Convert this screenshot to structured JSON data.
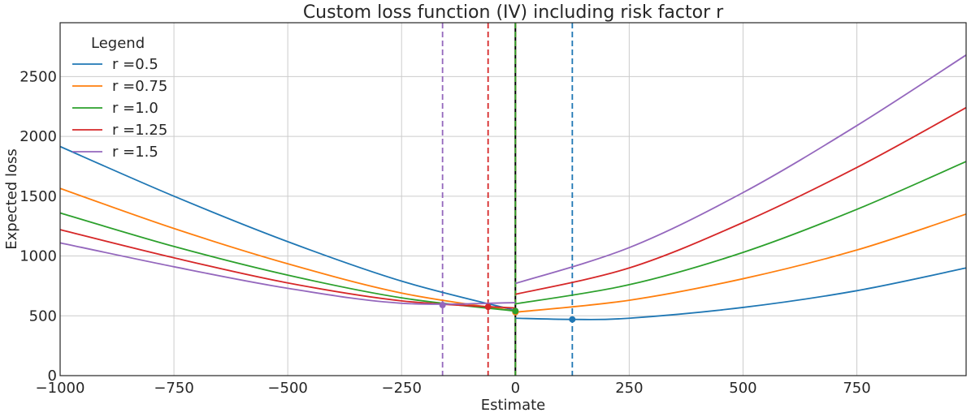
{
  "chart_data": {
    "type": "line",
    "title": "Custom loss function (IV) including risk factor r",
    "xlabel": "Estimate",
    "ylabel": "Expected loss",
    "xlim": [
      -1000,
      990
    ],
    "ylim": [
      0,
      2950
    ],
    "grid": true,
    "legend": {
      "title": "Legend",
      "placement": "top-left"
    },
    "x_ticks": [
      -1000,
      -750,
      -500,
      -250,
      0,
      250,
      500,
      750
    ],
    "x_tick_labels": [
      "−1000",
      "−750",
      "−500",
      "−250",
      "0",
      "250",
      "500",
      "750"
    ],
    "y_ticks": [
      0,
      500,
      1000,
      1500,
      2000,
      2500
    ],
    "y_tick_labels": [
      "0",
      "500",
      "1000",
      "1500",
      "2000",
      "2500"
    ],
    "series": [
      {
        "name": "r =0.5",
        "color": "#1f77b4",
        "left": {
          "x": [
            -1000,
            -750,
            -500,
            -250,
            0
          ],
          "y": [
            1915,
            1500,
            1120,
            790,
            545
          ]
        },
        "right": {
          "x": [
            0,
            125,
            250,
            500,
            750,
            990
          ],
          "y": [
            480,
            470,
            480,
            570,
            710,
            900
          ]
        },
        "minimum": {
          "x": 125,
          "y": 470
        }
      },
      {
        "name": "r =0.75",
        "color": "#ff7f0e",
        "left": {
          "x": [
            -1000,
            -750,
            -500,
            -250,
            0
          ],
          "y": [
            1565,
            1230,
            935,
            690,
            540
          ]
        },
        "right": {
          "x": [
            0,
            250,
            500,
            750,
            990
          ],
          "y": [
            530,
            630,
            810,
            1050,
            1350
          ]
        },
        "minimum": {
          "x": 0,
          "y": 530
        }
      },
      {
        "name": "r =1.0",
        "color": "#2ca02c",
        "left": {
          "x": [
            -1000,
            -750,
            -500,
            -250,
            0
          ],
          "y": [
            1360,
            1080,
            840,
            650,
            540
          ]
        },
        "right": {
          "x": [
            0,
            250,
            500,
            750,
            990
          ],
          "y": [
            600,
            760,
            1030,
            1390,
            1790
          ]
        },
        "minimum": {
          "x": 0,
          "y": 540
        }
      },
      {
        "name": "r =1.25",
        "color": "#d62728",
        "left": {
          "x": [
            -1000,
            -750,
            -500,
            -250,
            0
          ],
          "y": [
            1220,
            985,
            775,
            625,
            565
          ]
        },
        "right": {
          "x": [
            0,
            250,
            500,
            750,
            990
          ],
          "y": [
            680,
            900,
            1280,
            1740,
            2240
          ]
        },
        "minimum": {
          "x": -60,
          "y": 575
        }
      },
      {
        "name": "r =1.5",
        "color": "#9467bd",
        "left": {
          "x": [
            -1000,
            -750,
            -500,
            -250,
            0
          ],
          "y": [
            1110,
            910,
            730,
            605,
            610
          ]
        },
        "right": {
          "x": [
            0,
            250,
            500,
            750,
            990
          ],
          "y": [
            770,
            1070,
            1530,
            2090,
            2680
          ]
        },
        "minimum": {
          "x": -160,
          "y": 590
        }
      }
    ],
    "vertical_lines": [
      {
        "x": 0,
        "color": "#000000",
        "style": "solid"
      },
      {
        "x": 125,
        "color": "#1f77b4",
        "style": "dashed"
      },
      {
        "x": -60,
        "color": "#d62728",
        "style": "dashed"
      },
      {
        "x": -160,
        "color": "#9467bd",
        "style": "dashed"
      },
      {
        "x": 0,
        "color": "#ff7f0e",
        "style": "dashed"
      },
      {
        "x": 0,
        "color": "#2ca02c",
        "style": "dashed"
      }
    ]
  }
}
